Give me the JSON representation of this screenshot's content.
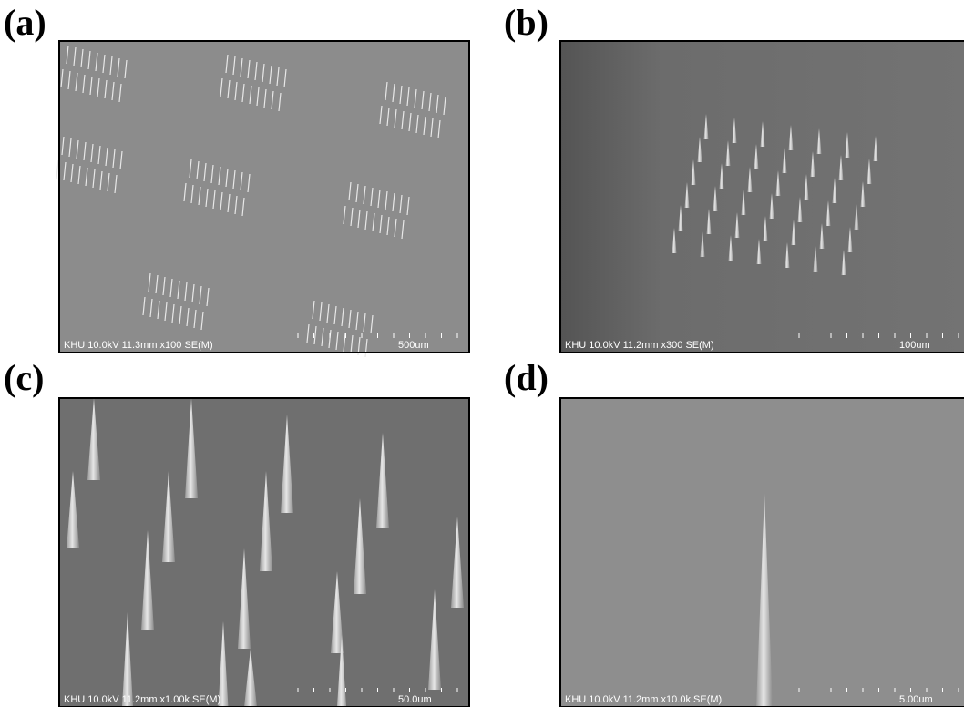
{
  "panels": [
    {
      "label": "(a)",
      "info": "KHU 10.0kV 11.3mm x100 SE(M)",
      "scale": "500um"
    },
    {
      "label": "(b)",
      "info": "KHU 10.0kV 11.2mm x300 SE(M)",
      "scale": "100um"
    },
    {
      "label": "(c)",
      "info": "KHU 10.0kV 11.2mm x1.00k SE(M)",
      "scale": "50.0um"
    },
    {
      "label": "(d)",
      "info": "KHU 10.0kV 11.2mm x10.0k SE(M)",
      "scale": "5.00um"
    }
  ]
}
